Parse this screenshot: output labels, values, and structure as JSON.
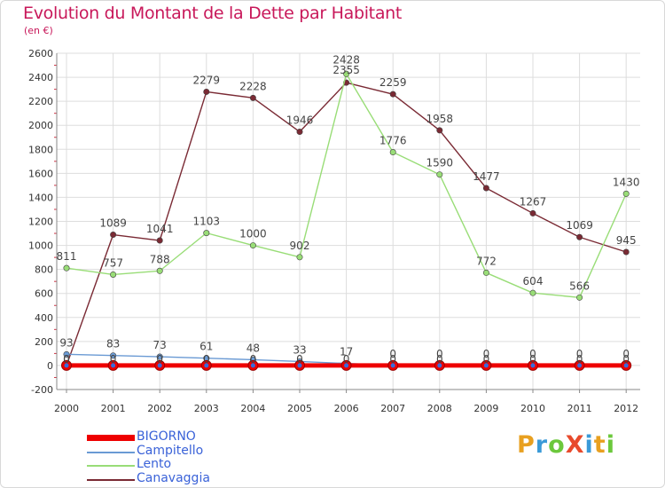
{
  "header": {
    "title": "Evolution du Montant de la Dette par Habitant",
    "subtitle": "(en €)"
  },
  "logo": {
    "text": "ProXiti",
    "colors": [
      "#e8a020",
      "#3a9ad8",
      "#6cc83c",
      "#e84a2c",
      "#3a9ad8",
      "#e8a020",
      "#6cc83c"
    ]
  },
  "chart_data": {
    "type": "line",
    "title": "Evolution du Montant de la Dette par Habitant",
    "subtitle": "(en €)",
    "x": [
      "2000",
      "2001",
      "2002",
      "2003",
      "2004",
      "2005",
      "2006",
      "2007",
      "2008",
      "2009",
      "2010",
      "2011",
      "2012"
    ],
    "ylim": [
      -200,
      2600
    ],
    "yticks": [
      "-200",
      "0",
      "200",
      "400",
      "600",
      "800",
      "1000",
      "1200",
      "1400",
      "1600",
      "1800",
      "2000",
      "2200",
      "2400",
      "2600"
    ],
    "grid": true,
    "legend_position": "bottom-left",
    "series": [
      {
        "name": "BIGORNO",
        "color": "#ee0000",
        "values": [
          0,
          0,
          0,
          0,
          0,
          0,
          0,
          0,
          0,
          0,
          0,
          0,
          0
        ],
        "labels": [
          "0",
          "0",
          "0",
          "0",
          "0",
          "0",
          "0",
          "0",
          "0",
          "0",
          "0",
          "0",
          "0"
        ]
      },
      {
        "name": "Campitello",
        "color": "#6a9ad4",
        "values": [
          93,
          83,
          73,
          61,
          48,
          33,
          17,
          0,
          0,
          0,
          0,
          0,
          0
        ],
        "labels": [
          "93",
          "83",
          "73",
          "61",
          "48",
          "33",
          "17",
          "0",
          "0",
          "0",
          "0",
          "0",
          "0"
        ]
      },
      {
        "name": "Lento",
        "color": "#99dd77",
        "values": [
          811,
          757,
          788,
          1103,
          1000,
          902,
          2428,
          1776,
          1590,
          772,
          604,
          566,
          1430
        ],
        "labels": [
          "811",
          "757",
          "788",
          "1103",
          "1000",
          "902",
          "2428",
          "1776",
          "1590",
          "772",
          "604",
          "566",
          "1430"
        ]
      },
      {
        "name": "Canavaggia",
        "color": "#7a2a34",
        "values": [
          0,
          1089,
          1041,
          2279,
          2228,
          1946,
          2355,
          2259,
          1958,
          1477,
          1267,
          1069,
          945
        ],
        "labels": [
          "0",
          "1089",
          "1041",
          "2279",
          "2228",
          "1946",
          "2355",
          "2259",
          "1958",
          "1477",
          "1267",
          "1069",
          "945"
        ]
      }
    ]
  }
}
